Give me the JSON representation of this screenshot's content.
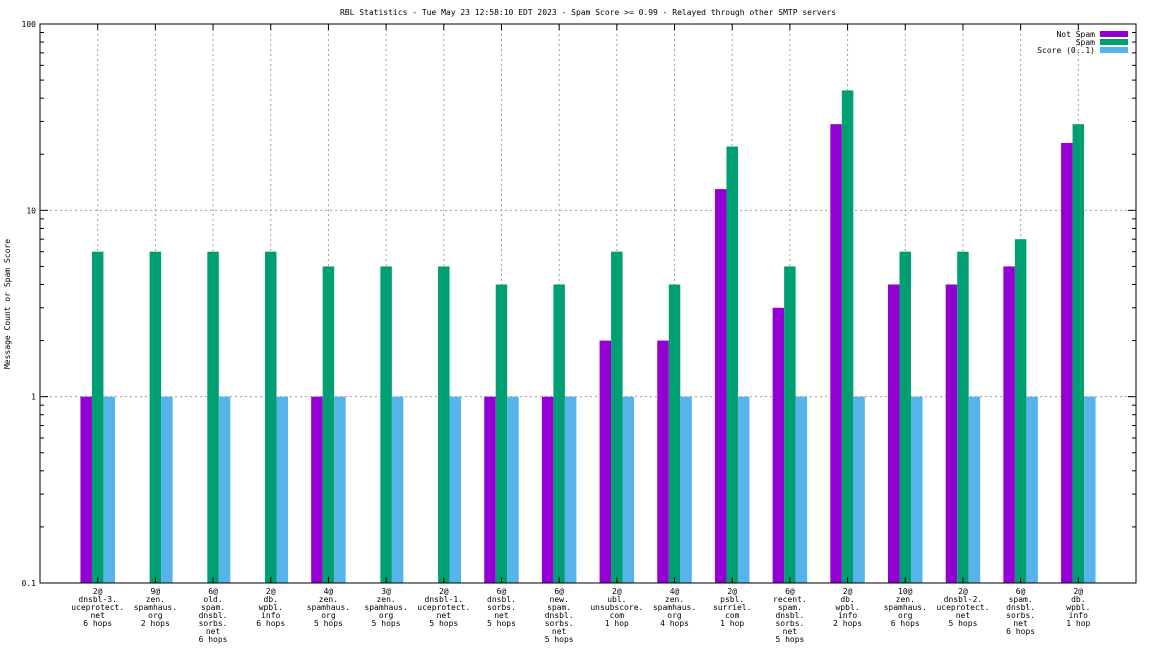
{
  "chart_data": {
    "type": "bar",
    "title": "RBL Statistics - Tue May 23 12:58:10 EDT 2023 - Spam Score >= 0.99 - Relayed through other SMTP servers",
    "ylabel": "Message Count or Spam Score",
    "xlabel": "",
    "yscale": "log",
    "ylim": [
      0.1,
      100
    ],
    "yticks": [
      {
        "value": 0.1,
        "label": "0.1"
      },
      {
        "value": 1,
        "label": "1"
      },
      {
        "value": 10,
        "label": "10"
      },
      {
        "value": 100,
        "label": "100"
      }
    ],
    "grid": true,
    "legend_position": "top-right",
    "categories": [
      [
        "2@",
        "dnsbl-3.",
        "uceprotect.",
        "net",
        "6 hops"
      ],
      [
        "9@",
        "zen.",
        "spamhaus.",
        "org",
        "2 hops"
      ],
      [
        "6@",
        "old.",
        "spam.",
        "dnsbl.",
        "sorbs.",
        "net",
        "6 hops"
      ],
      [
        "2@",
        "db.",
        "wpbl.",
        "info",
        "6 hops"
      ],
      [
        "4@",
        "zen.",
        "spamhaus.",
        "org",
        "5 hops"
      ],
      [
        "3@",
        "zen.",
        "spamhaus.",
        "org",
        "5 hops"
      ],
      [
        "2@",
        "dnsbl-1.",
        "uceprotect.",
        "net",
        "5 hops"
      ],
      [
        "6@",
        "dnsbl.",
        "sorbs.",
        "net",
        "5 hops"
      ],
      [
        "6@",
        "new.",
        "spam.",
        "dnsbl.",
        "sorbs.",
        "net",
        "5 hops"
      ],
      [
        "2@",
        "ubl.",
        "unsubscore.",
        "com",
        "1 hop"
      ],
      [
        "4@",
        "zen.",
        "spamhaus.",
        "org",
        "4 hops"
      ],
      [
        "2@",
        "psbl.",
        "surriel.",
        "com",
        "1 hop"
      ],
      [
        "6@",
        "recent.",
        "spam.",
        "dnsbl.",
        "sorbs.",
        "net",
        "5 hops"
      ],
      [
        "2@",
        "db.",
        "wpbl.",
        "info",
        "2 hops"
      ],
      [
        "10@",
        "zen.",
        "spamhaus.",
        "org",
        "6 hops"
      ],
      [
        "2@",
        "dnsbl-2.",
        "uceprotect.",
        "net",
        "5 hops"
      ],
      [
        "6@",
        "spam.",
        "dnsbl.",
        "sorbs.",
        "net",
        "6 hops"
      ],
      [
        "2@",
        "db.",
        "wpbl.",
        "info",
        "1 hop"
      ]
    ],
    "series": [
      {
        "name": "Not Spam",
        "color": "#9400d3",
        "values": [
          1,
          null,
          null,
          null,
          1,
          null,
          null,
          1,
          1,
          2,
          2,
          13,
          3,
          29,
          4,
          4,
          5,
          23
        ]
      },
      {
        "name": "Spam",
        "color": "#009e73",
        "values": [
          6,
          6,
          6,
          6,
          5,
          5,
          5,
          4,
          4,
          6,
          4,
          22,
          5,
          44,
          6,
          6,
          7,
          29
        ]
      },
      {
        "name": "Score (0..1)",
        "color": "#56b4e9",
        "values": [
          1,
          1,
          1,
          1,
          1,
          1,
          1,
          1,
          1,
          1,
          1,
          1,
          1,
          1,
          1,
          1,
          1,
          1
        ]
      }
    ]
  }
}
